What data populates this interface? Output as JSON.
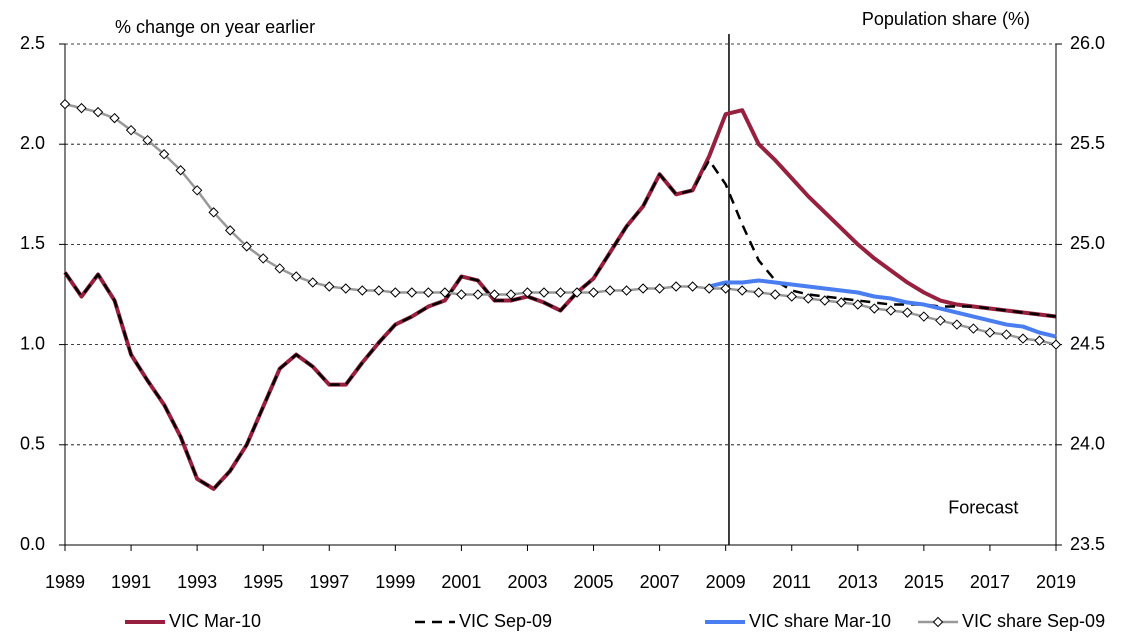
{
  "chart_data": {
    "type": "line",
    "ylabel": "% change on year earlier",
    "y2label": "Population share (%)",
    "annotation": "Forecast",
    "annotation_x": 2016.8,
    "annotation_y": 0.18,
    "vline": 2009.1,
    "grid": true,
    "legend": "bottom",
    "xlim": [
      1989,
      2019
    ],
    "xticks": [
      1989,
      1991,
      1993,
      1995,
      1997,
      1999,
      2001,
      2003,
      2005,
      2007,
      2009,
      2011,
      2013,
      2015,
      2017,
      2019
    ],
    "ylim": [
      0,
      2.5
    ],
    "yticks": [
      {
        "value": 0,
        "label": "0.0"
      },
      0.5,
      {
        "value": 1,
        "label": "1.0"
      },
      1.5,
      {
        "value": 2,
        "label": "2.0"
      },
      2.5
    ],
    "y2lim": [
      23.5,
      26
    ],
    "y2ticks": [
      23.5,
      {
        "value": 24,
        "label": "24.0"
      },
      24.5,
      {
        "value": 25,
        "label": "25.0"
      },
      25.5,
      {
        "value": 26,
        "label": "26.0"
      }
    ],
    "x": [
      1989,
      1989.5,
      1990,
      1990.5,
      1991,
      1991.5,
      1992,
      1992.5,
      1993,
      1993.5,
      1994,
      1994.5,
      1995,
      1995.5,
      1996,
      1996.5,
      1997,
      1997.5,
      1998,
      1998.5,
      1999,
      1999.5,
      2000,
      2000.5,
      2001,
      2001.5,
      2002,
      2002.5,
      2003,
      2003.5,
      2004,
      2004.5,
      2005,
      2005.5,
      2006,
      2006.5,
      2007,
      2007.5,
      2008,
      2008.5,
      2009,
      2009.5,
      2010,
      2010.5,
      2011,
      2011.5,
      2012,
      2012.5,
      2013,
      2013.5,
      2014,
      2014.5,
      2015,
      2015.5,
      2016,
      2016.5,
      2017,
      2017.5,
      2018,
      2018.5,
      2019
    ],
    "series": [
      {
        "name": "VIC Mar-10",
        "color": "#97203f",
        "style": "solid",
        "width": 4,
        "values": [
          1.36,
          1.24,
          1.35,
          1.22,
          0.95,
          0.82,
          0.7,
          0.54,
          0.33,
          0.28,
          0.37,
          0.5,
          0.69,
          0.88,
          0.95,
          0.89,
          0.8,
          0.8,
          0.91,
          1.01,
          1.1,
          1.14,
          1.19,
          1.22,
          1.34,
          1.32,
          1.22,
          1.22,
          1.24,
          1.21,
          1.17,
          1.26,
          1.33,
          1.46,
          1.59,
          1.69,
          1.85,
          1.75,
          1.77,
          1.94,
          2.15,
          2.17,
          2.0,
          1.92,
          1.83,
          1.74,
          1.66,
          1.58,
          1.5,
          1.43,
          1.37,
          1.31,
          1.26,
          1.22,
          1.2,
          1.19,
          1.18,
          1.17,
          1.16,
          1.15,
          1.14
        ]
      },
      {
        "name": "VIC Sep-09",
        "color": "#000000",
        "style": "dashed",
        "width": 2.5,
        "values": [
          1.36,
          1.24,
          1.35,
          1.22,
          0.95,
          0.82,
          0.7,
          0.54,
          0.33,
          0.28,
          0.37,
          0.5,
          0.69,
          0.88,
          0.95,
          0.89,
          0.8,
          0.8,
          0.91,
          1.01,
          1.1,
          1.14,
          1.19,
          1.22,
          1.34,
          1.32,
          1.22,
          1.22,
          1.24,
          1.21,
          1.17,
          1.26,
          1.33,
          1.46,
          1.59,
          1.69,
          1.85,
          1.75,
          1.77,
          1.92,
          1.8,
          1.6,
          1.42,
          1.32,
          1.27,
          1.25,
          1.24,
          1.23,
          1.22,
          1.21,
          1.2,
          1.2,
          1.2,
          1.19,
          1.19,
          1.19,
          1.18,
          1.17,
          1.16,
          1.15,
          1.14
        ]
      },
      {
        "name": "VIC share Mar-10",
        "color": "#4a7ef0",
        "style": "solid",
        "width": 4,
        "axis": "y2",
        "values": [
          null,
          null,
          null,
          null,
          null,
          null,
          null,
          null,
          null,
          null,
          null,
          null,
          null,
          null,
          null,
          null,
          null,
          null,
          null,
          null,
          null,
          null,
          null,
          null,
          null,
          null,
          null,
          null,
          null,
          null,
          null,
          null,
          null,
          null,
          null,
          null,
          null,
          null,
          null,
          24.79,
          24.81,
          24.81,
          24.82,
          24.81,
          24.8,
          24.79,
          24.78,
          24.77,
          24.76,
          24.74,
          24.73,
          24.71,
          24.7,
          24.68,
          24.66,
          24.64,
          24.62,
          24.6,
          24.59,
          24.56,
          24.54
        ]
      },
      {
        "name": "VIC share Sep-09",
        "color": "#999999",
        "style": "solid",
        "width": 2.5,
        "axis": "y2",
        "marker": "diamond",
        "values": [
          25.7,
          25.68,
          25.66,
          25.63,
          25.57,
          25.52,
          25.45,
          25.37,
          25.27,
          25.16,
          25.07,
          24.99,
          24.93,
          24.88,
          24.84,
          24.81,
          24.79,
          24.78,
          24.77,
          24.77,
          24.76,
          24.76,
          24.76,
          24.76,
          24.75,
          24.75,
          24.75,
          24.75,
          24.76,
          24.76,
          24.76,
          24.76,
          24.76,
          24.77,
          24.77,
          24.78,
          24.78,
          24.79,
          24.79,
          24.78,
          24.78,
          24.77,
          24.76,
          24.75,
          24.74,
          24.73,
          24.72,
          24.71,
          24.7,
          24.68,
          24.67,
          24.66,
          24.64,
          24.62,
          24.6,
          24.58,
          24.56,
          24.55,
          24.53,
          24.52,
          24.5
        ]
      }
    ]
  }
}
